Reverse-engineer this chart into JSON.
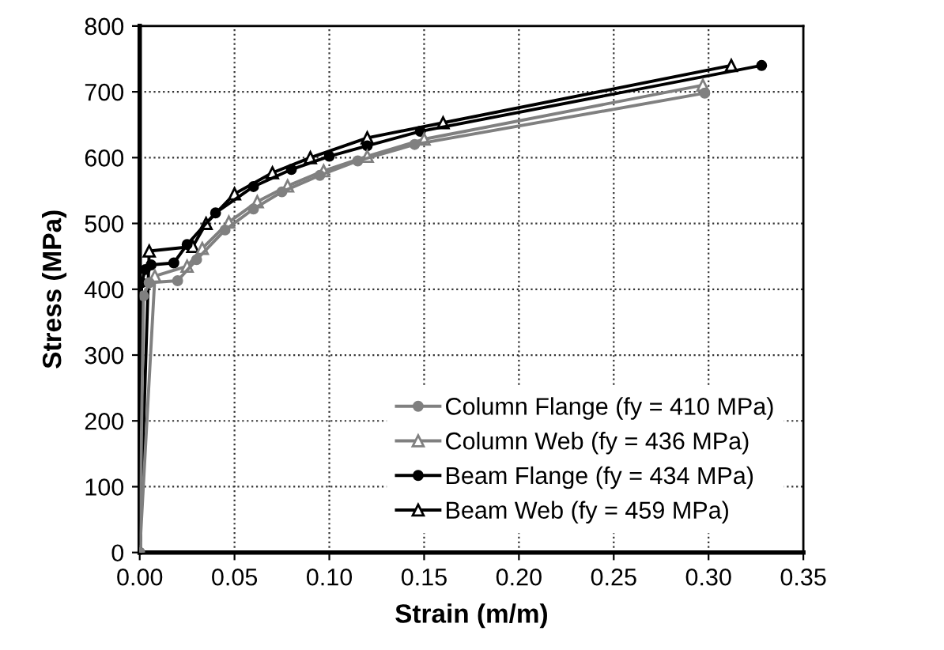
{
  "chart_data": {
    "type": "line",
    "xlabel": "Strain (m/m)",
    "ylabel": "Stress (MPa)",
    "xlim": [
      0,
      0.35
    ],
    "ylim": [
      0,
      800
    ],
    "xticks": [
      {
        "value": 0,
        "label": "0.00"
      },
      {
        "value": 0.05,
        "label": "0.05"
      },
      {
        "value": 0.1,
        "label": "0.10"
      },
      {
        "value": 0.15,
        "label": "0.15"
      },
      {
        "value": 0.2,
        "label": "0.20"
      },
      {
        "value": 0.25,
        "label": "0.25"
      },
      {
        "value": 0.3,
        "label": "0.30"
      },
      {
        "value": 0.35,
        "label": "0.35"
      }
    ],
    "yticks": [
      0,
      100,
      200,
      300,
      400,
      500,
      600,
      700,
      800
    ],
    "grid": true,
    "legend": "bottom right",
    "series": [
      {
        "name": "Column Flange (fy = 410 MPa)",
        "color": "#808080",
        "marker": "circle",
        "x": [
          0,
          0.002,
          0.005,
          0.02,
          0.03,
          0.045,
          0.06,
          0.075,
          0.095,
          0.115,
          0.145,
          0.298
        ],
        "values": [
          0,
          390,
          410,
          413,
          445,
          490,
          522,
          548,
          573,
          595,
          620,
          698
        ]
      },
      {
        "name": "Column Web (fy = 436 MPa)",
        "color": "#808080",
        "marker": "triangle",
        "x": [
          0,
          0.008,
          0.025,
          0.033,
          0.047,
          0.062,
          0.078,
          0.097,
          0.12,
          0.15,
          0.297
        ],
        "values": [
          0,
          420,
          435,
          462,
          502,
          533,
          557,
          580,
          602,
          628,
          710
        ]
      },
      {
        "name": "Beam Flange (fy = 434 MPa)",
        "color": "#000000",
        "marker": "circle",
        "x": [
          0,
          0.001,
          0.003,
          0.006,
          0.018,
          0.025,
          0.04,
          0.06,
          0.08,
          0.1,
          0.12,
          0.148,
          0.328
        ],
        "values": [
          0,
          410,
          430,
          437,
          440,
          468,
          516,
          556,
          582,
          602,
          618,
          640,
          740
        ]
      },
      {
        "name": "Beam Web (fy = 459 MPa)",
        "color": "#000000",
        "marker": "triangle",
        "x": [
          0,
          0.005,
          0.028,
          0.035,
          0.05,
          0.07,
          0.09,
          0.12,
          0.16,
          0.312
        ],
        "values": [
          0,
          458,
          465,
          500,
          545,
          577,
          600,
          630,
          653,
          740
        ]
      }
    ]
  }
}
